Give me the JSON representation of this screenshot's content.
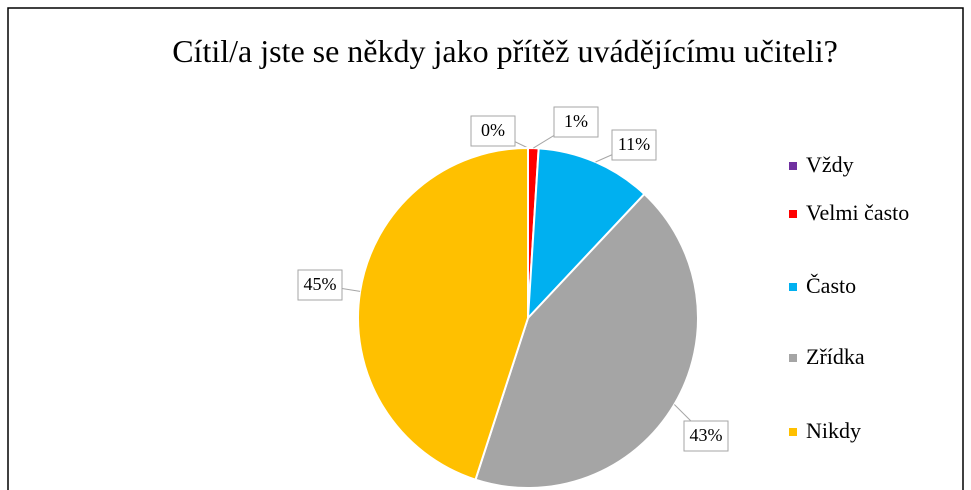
{
  "chart_data": {
    "type": "pie",
    "title": "Cítil/a jste se někdy jako přítěž uvádějícímu učiteli?",
    "categories": [
      "Vždy",
      "Velmi často",
      "Často",
      "Zřídka",
      "Nikdy"
    ],
    "values": [
      0,
      1,
      11,
      43,
      45
    ],
    "value_labels": [
      "0%",
      "1%",
      "11%",
      "43%",
      "45%"
    ],
    "colors": [
      "#7030a0",
      "#ff0000",
      "#00b0f0",
      "#a5a5a5",
      "#ffc000"
    ],
    "legend": "right"
  }
}
